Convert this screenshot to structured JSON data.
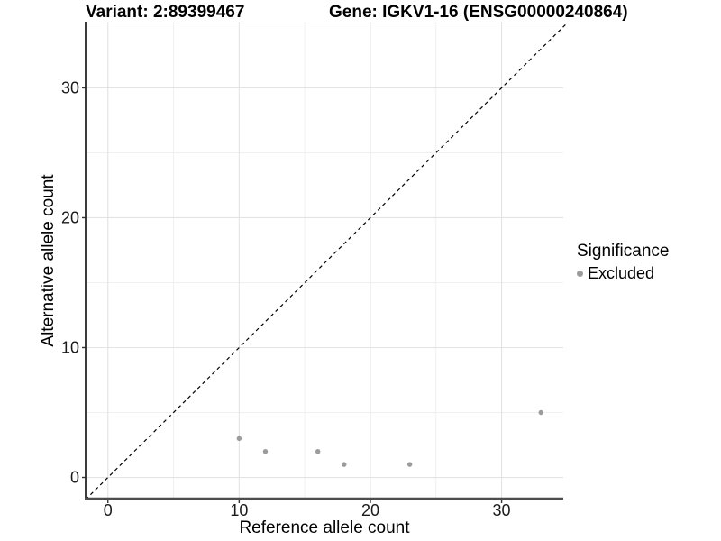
{
  "titles": {
    "variant": "Variant: 2:89399467",
    "gene": "Gene: IGKV1-16 (ENSG00000240864)"
  },
  "legend": {
    "title": "Significance",
    "items": [
      {
        "label": "Excluded",
        "color": "#9c9c9c"
      }
    ]
  },
  "colors": {
    "grid_major": "#e3e3e3",
    "grid_minor": "#f0f0f0",
    "axis_line_x": "#4d4d4d",
    "axis_line_y": "#1a1a1a",
    "tick_mark": "#333333",
    "tick_label": "#1a1a1a",
    "identity_line": "#000000",
    "point": "#9c9c9c"
  },
  "chart_data": {
    "type": "scatter",
    "title": "",
    "xlabel": "Reference allele count",
    "ylabel": "Alternative allele count",
    "xlim": [
      -1.7,
      34.7
    ],
    "ylim": [
      -1.7,
      35.1
    ],
    "x_major_ticks": [
      0,
      10,
      20,
      30
    ],
    "x_minor_gridlines": [
      5,
      15,
      25
    ],
    "y_major_ticks": [
      0,
      10,
      20,
      30
    ],
    "y_minor_gridlines": [
      5,
      15,
      25,
      35
    ],
    "grid": true,
    "legend_position": "right",
    "identity_line": {
      "style": "dashed",
      "equation": "y = x",
      "from": -1.7,
      "to": 34.95
    },
    "series": [
      {
        "name": "Excluded",
        "color": "#9c9c9c",
        "points": [
          [
            10,
            3
          ],
          [
            12,
            2
          ],
          [
            16,
            2
          ],
          [
            18,
            1
          ],
          [
            23,
            1
          ],
          [
            33,
            5
          ]
        ]
      }
    ]
  }
}
